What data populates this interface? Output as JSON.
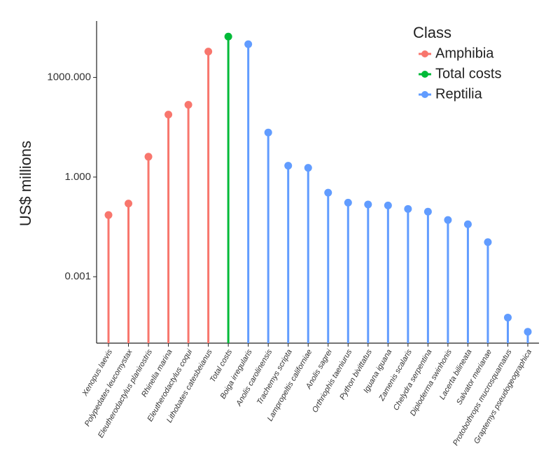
{
  "chart_data": {
    "type": "lollipop",
    "y_label": "US$ millions",
    "legend_title": "Class",
    "log_scale": true,
    "ylim": [
      1e-05,
      50000
    ],
    "yticks": [
      {
        "value": 1000,
        "label": "1000.000"
      },
      {
        "value": 1,
        "label": "1.000"
      },
      {
        "value": 0.001,
        "label": "0.001"
      }
    ],
    "categories": [
      "Xenopus laevis",
      "Polypedates leucomystax",
      "Eleutherodactylus planirostris",
      "Rhinella marina",
      "Eleutherodactylus coqui",
      "Lithobates catesbeianus",
      "Total costs",
      "Boiga irregularis",
      "Anolis carolinensis",
      "Trachemys scripta",
      "Lampropeltis californiae",
      "Anolis sagrei",
      "Orthriophis taeniurus",
      "Python bivittatus",
      "Iguana iguana",
      "Zamenis scalaris",
      "Chelydra serpentina",
      "Diploderma swinhonis",
      "Lacerta bilineata",
      "Salvator merianae",
      "Protobothrops mucrosquamatus",
      "Graptemys pseudogeographica"
    ],
    "series": [
      {
        "name": "Amphibia",
        "color": "#f8766d",
        "values": [
          0.072,
          0.16,
          4.1,
          76,
          150,
          6000,
          null,
          null,
          null,
          null,
          null,
          null,
          null,
          null,
          null,
          null,
          null,
          null,
          null,
          null,
          null,
          null
        ]
      },
      {
        "name": "Total costs",
        "color": "#00ba38",
        "values": [
          null,
          null,
          null,
          null,
          null,
          null,
          17000,
          null,
          null,
          null,
          null,
          null,
          null,
          null,
          null,
          null,
          null,
          null,
          null,
          null,
          null,
          null
        ]
      },
      {
        "name": "Reptilia",
        "color": "#619cff",
        "values": [
          null,
          null,
          null,
          null,
          null,
          null,
          null,
          10000,
          22,
          2.2,
          1.9,
          0.34,
          0.17,
          0.15,
          0.14,
          0.11,
          0.091,
          0.051,
          0.038,
          0.011,
          5.9e-05,
          2.2e-05
        ]
      }
    ]
  }
}
